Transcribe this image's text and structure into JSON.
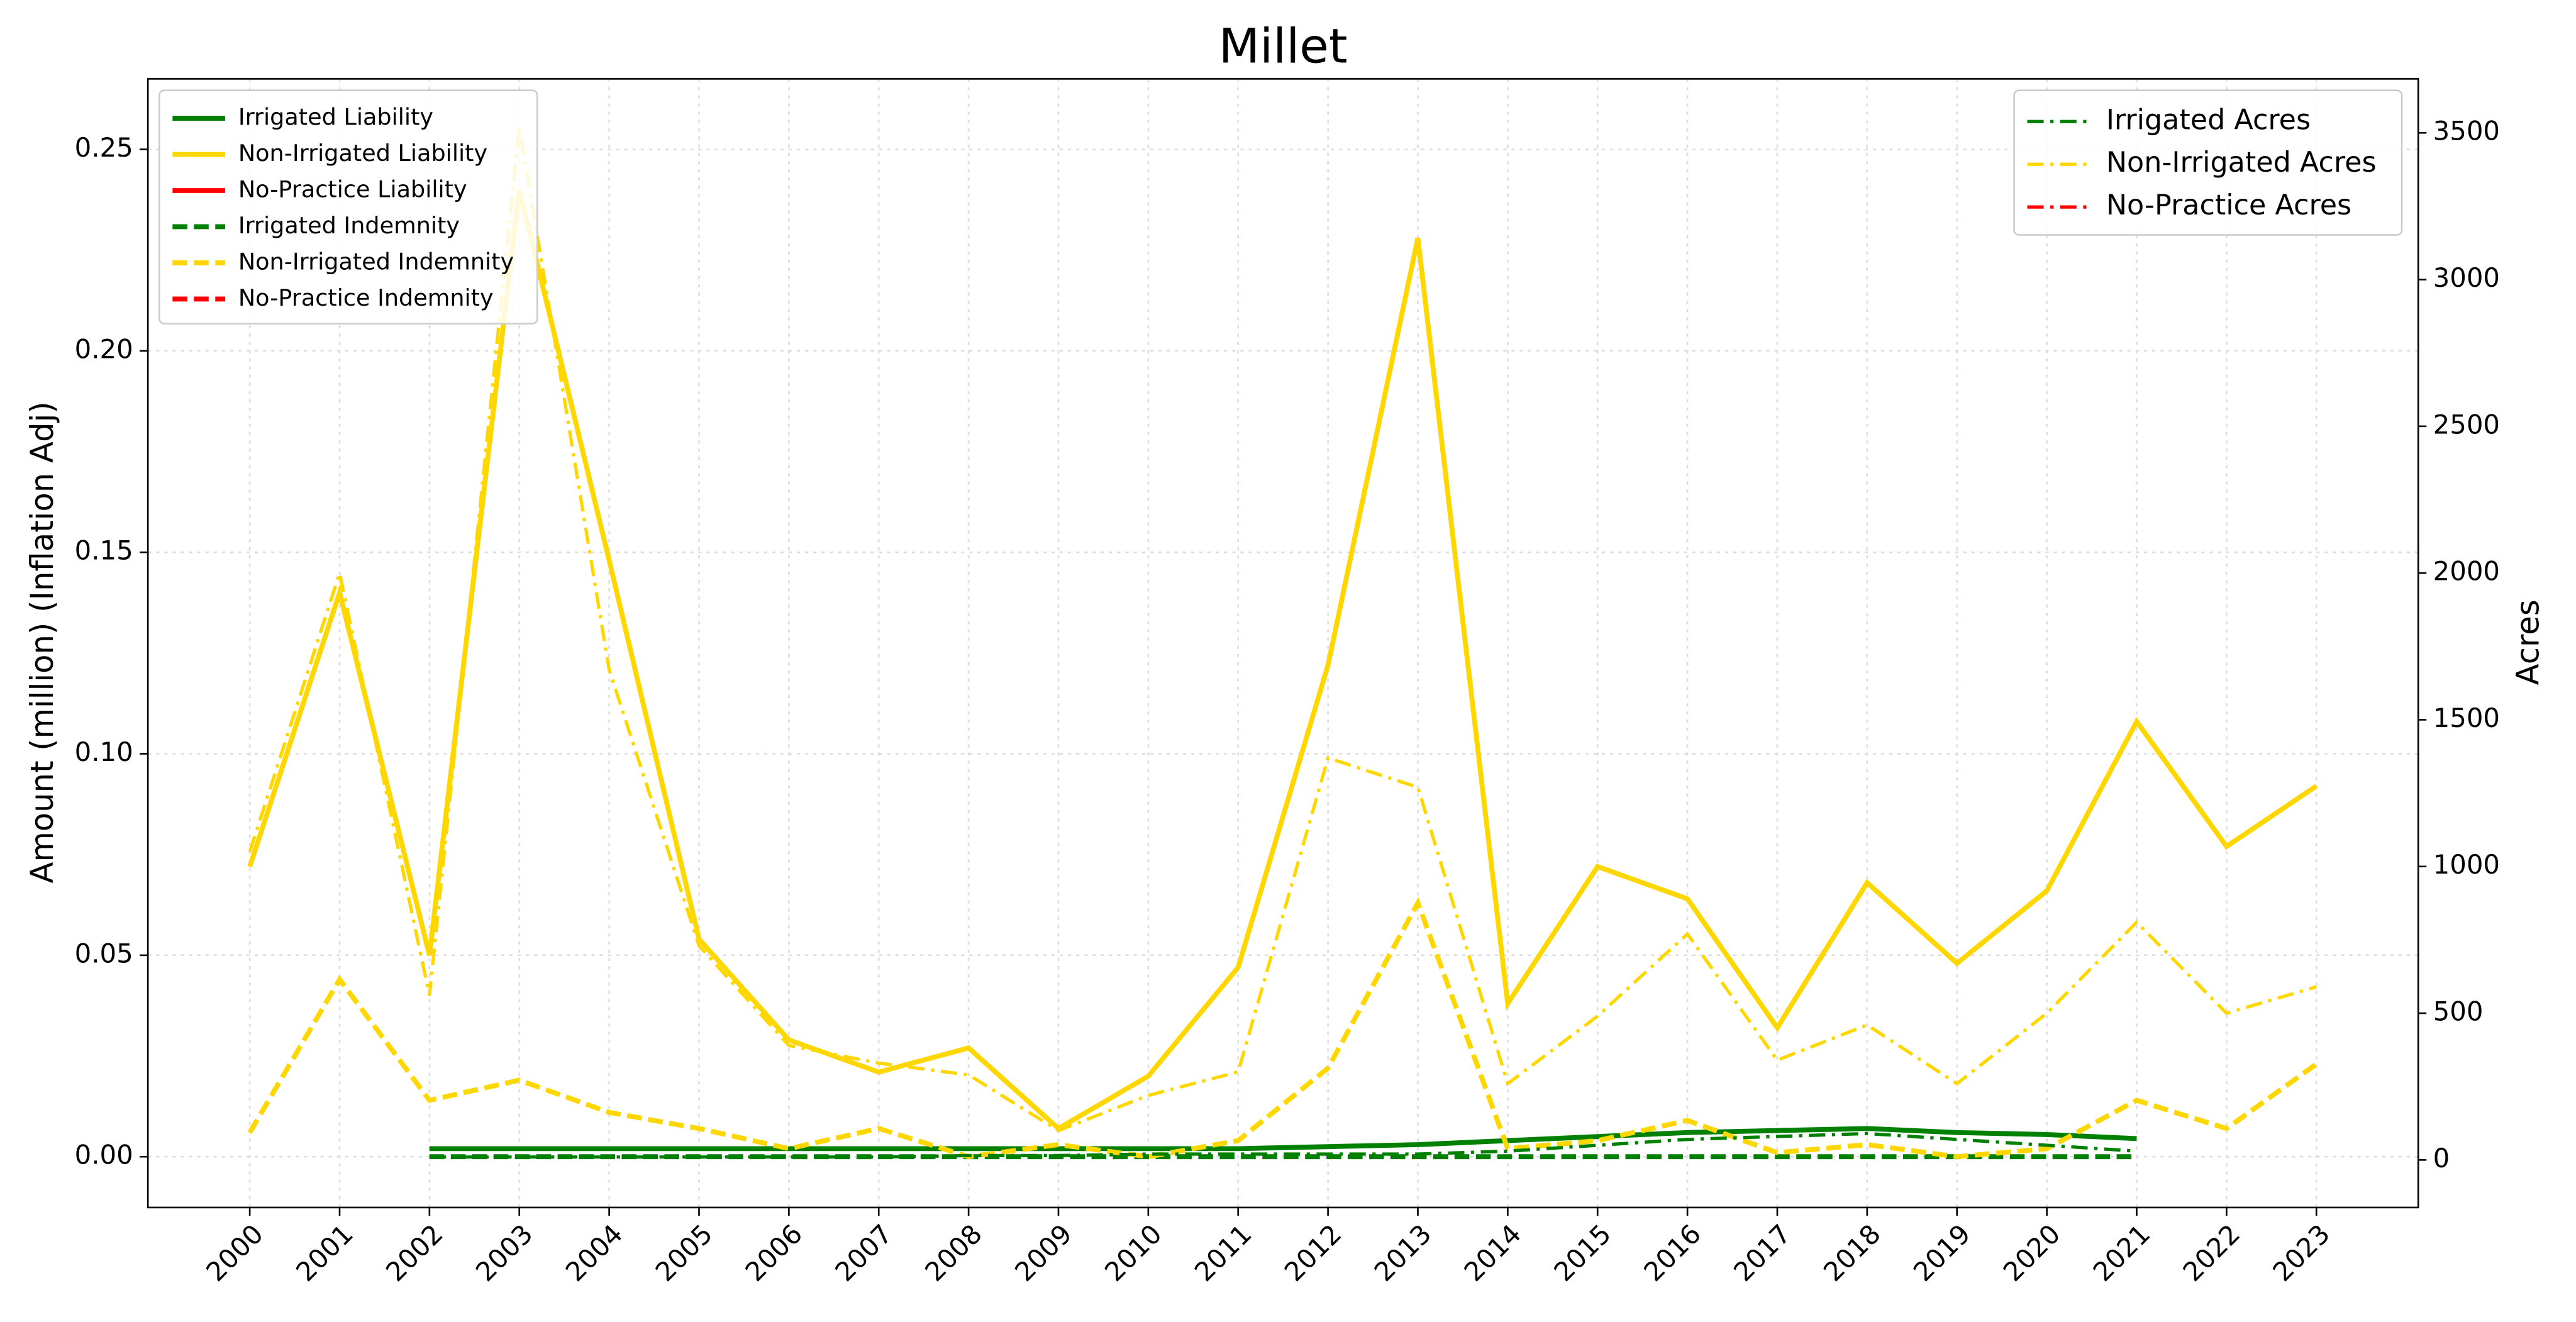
{
  "chart_data": {
    "type": "line",
    "title": "Millet",
    "y_label": "Amount (million) (Inflation Adj)",
    "y2_label": "Acres",
    "categories": [
      "2000",
      "2001",
      "2002",
      "2003",
      "2004",
      "2005",
      "2006",
      "2007",
      "2008",
      "2009",
      "2010",
      "2011",
      "2012",
      "2013",
      "2014",
      "2015",
      "2016",
      "2017",
      "2018",
      "2019",
      "2020",
      "2021",
      "2022",
      "2023"
    ],
    "ylim": [
      -0.0126,
      0.2675
    ],
    "yticks": [
      {
        "value": 0,
        "label": "0.00"
      },
      {
        "value": 0.05,
        "label": "0.05"
      },
      {
        "value": 0.1,
        "label": "0.10"
      },
      {
        "value": 0.15,
        "label": "0.15"
      },
      {
        "value": 0.2,
        "label": "0.20"
      },
      {
        "value": 0.25,
        "label": "0.25"
      }
    ],
    "y2lim": [
      -162,
      3684
    ],
    "y2ticks": [
      0,
      500,
      1000,
      1500,
      2000,
      2500,
      3000,
      3500
    ],
    "grid": true,
    "legend": "upper left",
    "legend2": "upper right",
    "series": [
      {
        "name": "Irrigated Liability",
        "color": "#008000",
        "style": "solid",
        "axis": "y",
        "values": [
          null,
          null,
          0.002,
          0.002,
          0.002,
          0.002,
          0.002,
          0.002,
          0.002,
          0.002,
          0.002,
          0.002,
          0.0025,
          0.003,
          0.004,
          0.005,
          0.006,
          0.0065,
          0.007,
          0.006,
          0.0055,
          0.0045,
          null,
          null
        ]
      },
      {
        "name": "Non-Irrigated Liability",
        "color": "#ffd700",
        "style": "solid",
        "axis": "y",
        "values": [
          0.072,
          0.14,
          0.05,
          0.24,
          0.148,
          0.054,
          0.029,
          0.021,
          0.027,
          0.007,
          0.02,
          0.047,
          0.122,
          0.228,
          0.038,
          0.072,
          0.064,
          0.032,
          0.068,
          0.048,
          0.066,
          0.108,
          0.077,
          0.092
        ]
      },
      {
        "name": "No-Practice Liability",
        "color": "#ff0000",
        "style": "solid",
        "axis": "y",
        "values": [
          null,
          null,
          null,
          null,
          null,
          null,
          null,
          null,
          null,
          null,
          null,
          null,
          null,
          null,
          null,
          null,
          null,
          null,
          null,
          null,
          null,
          null,
          null,
          null
        ]
      },
      {
        "name": "Irrigated Indemnity",
        "color": "#008000",
        "style": "dashed",
        "axis": "y",
        "values": [
          null,
          null,
          0,
          0,
          0,
          0,
          0,
          0,
          0,
          0,
          0,
          0,
          0,
          0,
          0,
          0,
          0,
          0,
          0,
          0,
          0,
          0,
          null,
          null
        ]
      },
      {
        "name": "Non-Irrigated Indemnity",
        "color": "#ffd700",
        "style": "dashed",
        "axis": "y",
        "values": [
          0.006,
          0.044,
          0.014,
          0.019,
          0.011,
          0.007,
          0.002,
          0.007,
          0,
          0.003,
          0,
          0.004,
          0.022,
          0.063,
          0.002,
          0.004,
          0.009,
          0.001,
          0.003,
          0,
          0.002,
          0.014,
          0.007,
          0.023
        ]
      },
      {
        "name": "No-Practice Indemnity",
        "color": "#ff0000",
        "style": "dashed",
        "axis": "y",
        "values": [
          null,
          null,
          null,
          null,
          null,
          null,
          null,
          null,
          null,
          null,
          null,
          null,
          null,
          null,
          null,
          null,
          null,
          null,
          null,
          null,
          null,
          null,
          null,
          null
        ]
      },
      {
        "name": "Irrigated Acres",
        "color": "#008000",
        "style": "dashdot",
        "axis": "y2",
        "values": [
          null,
          null,
          10,
          10,
          10,
          10,
          10,
          10,
          15,
          15,
          20,
          20,
          20,
          20,
          30,
          50,
          70,
          80,
          90,
          70,
          50,
          30,
          null,
          null
        ]
      },
      {
        "name": "Non-Irrigated Acres",
        "color": "#ffd700",
        "style": "dashdot",
        "axis": "y2",
        "values": [
          1050,
          2000,
          560,
          3520,
          1670,
          730,
          390,
          330,
          290,
          100,
          220,
          300,
          1370,
          1270,
          260,
          490,
          770,
          340,
          460,
          260,
          500,
          810,
          500,
          590
        ]
      },
      {
        "name": "No-Practice Acres",
        "color": "#ff0000",
        "style": "dashdot",
        "axis": "y2",
        "values": [
          null,
          null,
          null,
          null,
          null,
          null,
          null,
          null,
          null,
          null,
          null,
          null,
          null,
          null,
          null,
          null,
          null,
          null,
          null,
          null,
          null,
          null,
          null,
          null
        ]
      }
    ]
  }
}
